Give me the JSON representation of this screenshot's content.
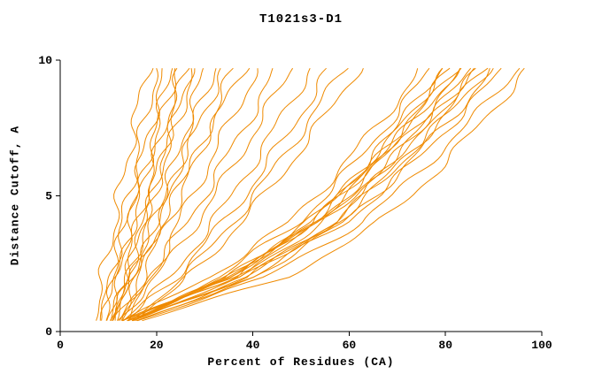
{
  "title": "T1021s3-D1",
  "colors": {
    "curve": "#ef8a00",
    "axis": "#000000",
    "background": "#ffffff",
    "text": "#000000"
  },
  "chart_data": {
    "type": "line",
    "title": "T1021s3-D1",
    "xlabel": "Percent of Residues (CA)",
    "ylabel": "Distance Cutoff, A",
    "xlim": [
      0,
      100
    ],
    "ylim": [
      0,
      10
    ],
    "xticks": [
      0,
      20,
      40,
      60,
      80,
      100
    ],
    "yticks": [
      0,
      5,
      10
    ],
    "grid": false,
    "legend": "none",
    "series": [
      {
        "points": [
          [
            7.3,
            0.4
          ],
          [
            8.9,
            2
          ],
          [
            11.2,
            4
          ],
          [
            12.3,
            5
          ],
          [
            13.5,
            6
          ],
          [
            15.9,
            8
          ],
          [
            18,
            9.7
          ]
        ]
      },
      {
        "points": [
          [
            8.5,
            0.4
          ],
          [
            10.5,
            2
          ],
          [
            13,
            4
          ],
          [
            14.2,
            5
          ],
          [
            15.4,
            6
          ],
          [
            17.9,
            8
          ],
          [
            20,
            9.7
          ]
        ]
      },
      {
        "points": [
          [
            8.5,
            0.4
          ],
          [
            10.7,
            2
          ],
          [
            13.5,
            4
          ],
          [
            15,
            5
          ],
          [
            16.5,
            6
          ],
          [
            19.4,
            8
          ],
          [
            22,
            9.7
          ]
        ]
      },
      {
        "points": [
          [
            9.7,
            0.4
          ],
          [
            12.1,
            2
          ],
          [
            15,
            4
          ],
          [
            16.5,
            5
          ],
          [
            17.9,
            6
          ],
          [
            20.7,
            8
          ],
          [
            23,
            9.7
          ]
        ]
      },
      {
        "points": [
          [
            9.5,
            0.4
          ],
          [
            11.6,
            2
          ],
          [
            14.7,
            4
          ],
          [
            16.2,
            5
          ],
          [
            17.8,
            6
          ],
          [
            21.1,
            8
          ],
          [
            24,
            9.7
          ]
        ]
      },
      {
        "points": [
          [
            10.6,
            0.4
          ],
          [
            13.1,
            2
          ],
          [
            16.2,
            4
          ],
          [
            17.7,
            5
          ],
          [
            19.3,
            6
          ],
          [
            22.4,
            8
          ],
          [
            25,
            9.7
          ]
        ]
      },
      {
        "points": [
          [
            10.9,
            0.4
          ],
          [
            13.9,
            2
          ],
          [
            17.2,
            4
          ],
          [
            18.8,
            5
          ],
          [
            20.4,
            6
          ],
          [
            23.5,
            8
          ],
          [
            26,
            9.7
          ]
        ]
      },
      {
        "points": [
          [
            11.7,
            0.4
          ],
          [
            14.3,
            2
          ],
          [
            17.6,
            4
          ],
          [
            19.3,
            5
          ],
          [
            20.9,
            6
          ],
          [
            24.2,
            8
          ],
          [
            27,
            9.7
          ]
        ]
      },
      {
        "points": [
          [
            11.5,
            0.4
          ],
          [
            14,
            2
          ],
          [
            17.4,
            4
          ],
          [
            19.2,
            5
          ],
          [
            21,
            6
          ],
          [
            24.8,
            8
          ],
          [
            28,
            9.7
          ]
        ]
      },
      {
        "points": [
          [
            12.9,
            0.4
          ],
          [
            16,
            2
          ],
          [
            19.8,
            4
          ],
          [
            21.6,
            5
          ],
          [
            23.4,
            6
          ],
          [
            27,
            8
          ],
          [
            30,
            9.7
          ]
        ]
      },
      {
        "points": [
          [
            12.8,
            0.4
          ],
          [
            16.1,
            2
          ],
          [
            20.3,
            4
          ],
          [
            22.3,
            5
          ],
          [
            24.4,
            6
          ],
          [
            28.5,
            8
          ],
          [
            32,
            9.7
          ]
        ]
      },
      {
        "points": [
          [
            10.8,
            0.4
          ],
          [
            14.6,
            2
          ],
          [
            19.5,
            4
          ],
          [
            22,
            5
          ],
          [
            24.5,
            6
          ],
          [
            29.6,
            8
          ],
          [
            34,
            9.7
          ]
        ]
      },
      {
        "points": [
          [
            12.4,
            0.4
          ],
          [
            17,
            2
          ],
          [
            22.3,
            4
          ],
          [
            24.8,
            5
          ],
          [
            27.2,
            6
          ],
          [
            32,
            8
          ],
          [
            36,
            9.7
          ]
        ]
      },
      {
        "points": [
          [
            10.2,
            0.4
          ],
          [
            15,
            2
          ],
          [
            21,
            4
          ],
          [
            24,
            5
          ],
          [
            26.9,
            6
          ],
          [
            32.9,
            8
          ],
          [
            38,
            9.7
          ]
        ]
      },
      {
        "points": [
          [
            14.2,
            0.4
          ],
          [
            18.8,
            2
          ],
          [
            24.6,
            4
          ],
          [
            27.4,
            5
          ],
          [
            30.3,
            6
          ],
          [
            36.1,
            8
          ],
          [
            41,
            9.7
          ]
        ]
      },
      {
        "points": [
          [
            10.9,
            0.4
          ],
          [
            18.5,
            2
          ],
          [
            26.2,
            4
          ],
          [
            29.8,
            5
          ],
          [
            33.2,
            6
          ],
          [
            39.7,
            8
          ],
          [
            45,
            9.7
          ]
        ]
      },
      {
        "points": [
          [
            12,
            0.4
          ],
          [
            20,
            2
          ],
          [
            28.2,
            4
          ],
          [
            32,
            5
          ],
          [
            35.6,
            6
          ],
          [
            42.4,
            8
          ],
          [
            48,
            9.7
          ]
        ]
      },
      {
        "points": [
          [
            13.9,
            0.4
          ],
          [
            22.9,
            2
          ],
          [
            31.6,
            4
          ],
          [
            35.6,
            5
          ],
          [
            39.3,
            6
          ],
          [
            46.4,
            8
          ],
          [
            52,
            9.7
          ]
        ]
      },
      {
        "points": [
          [
            13.2,
            0.4
          ],
          [
            23.9,
            2
          ],
          [
            33.8,
            4
          ],
          [
            38.2,
            5
          ],
          [
            42.3,
            6
          ],
          [
            49.9,
            8
          ],
          [
            56,
            9.7
          ]
        ]
      },
      {
        "points": [
          [
            15.5,
            0.4
          ],
          [
            25.7,
            2
          ],
          [
            35.7,
            4
          ],
          [
            40.2,
            5
          ],
          [
            44.5,
            6
          ],
          [
            52.5,
            8
          ],
          [
            59,
            9.7
          ]
        ]
      },
      {
        "points": [
          [
            14.7,
            0.4
          ],
          [
            26.6,
            2
          ],
          [
            37.5,
            4
          ],
          [
            42.3,
            5
          ],
          [
            46.9,
            6
          ],
          [
            55.3,
            8
          ],
          [
            62,
            9.7
          ]
        ]
      },
      {
        "points": [
          [
            13,
            0.4
          ],
          [
            31,
            2
          ],
          [
            47.4,
            4
          ],
          [
            53,
            5
          ],
          [
            58.2,
            6
          ],
          [
            67.7,
            8
          ],
          [
            75,
            9.7
          ]
        ]
      },
      {
        "points": [
          [
            14,
            0.4
          ],
          [
            33,
            2
          ],
          [
            49.4,
            4
          ],
          [
            55,
            5
          ],
          [
            60.2,
            6
          ],
          [
            69.7,
            8
          ],
          [
            77,
            9.7
          ]
        ]
      },
      {
        "points": [
          [
            14,
            0.4
          ],
          [
            35.5,
            2
          ],
          [
            52.1,
            4
          ],
          [
            57.7,
            5
          ],
          [
            62.8,
            6
          ],
          [
            72,
            8
          ],
          [
            79,
            9.7
          ]
        ]
      },
      {
        "points": [
          [
            15,
            0.4
          ],
          [
            34.7,
            2
          ],
          [
            51.6,
            4
          ],
          [
            57.4,
            5
          ],
          [
            62.7,
            6
          ],
          [
            72.5,
            8
          ],
          [
            80,
            9.7
          ]
        ]
      },
      {
        "points": [
          [
            13,
            0.4
          ],
          [
            35.7,
            2
          ],
          [
            52.9,
            4
          ],
          [
            58.7,
            5
          ],
          [
            64.1,
            6
          ],
          [
            73.7,
            8
          ],
          [
            81,
            9.7
          ]
        ]
      },
      {
        "points": [
          [
            14,
            0.4
          ],
          [
            35,
            2
          ],
          [
            52.3,
            4
          ],
          [
            58.4,
            5
          ],
          [
            64,
            6
          ],
          [
            74.1,
            8
          ],
          [
            82,
            9.7
          ]
        ]
      },
      {
        "points": [
          [
            15,
            0.4
          ],
          [
            34.5,
            2
          ],
          [
            52,
            4
          ],
          [
            58.2,
            5
          ],
          [
            64,
            6
          ],
          [
            74.6,
            8
          ],
          [
            83,
            9.7
          ]
        ]
      },
      {
        "points": [
          [
            13,
            0.4
          ],
          [
            35,
            2
          ],
          [
            53.1,
            4
          ],
          [
            59.4,
            5
          ],
          [
            65.2,
            6
          ],
          [
            75.8,
            8
          ],
          [
            84,
            9.7
          ]
        ]
      },
      {
        "points": [
          [
            16,
            0.4
          ],
          [
            39,
            2
          ],
          [
            56.5,
            4
          ],
          [
            62.4,
            5
          ],
          [
            67.8,
            6
          ],
          [
            77.6,
            8
          ],
          [
            85,
            9.7
          ]
        ]
      },
      {
        "points": [
          [
            14,
            0.4
          ],
          [
            36.5,
            2
          ],
          [
            54.7,
            4
          ],
          [
            61.1,
            5
          ],
          [
            67,
            6
          ],
          [
            77.7,
            8
          ],
          [
            86,
            9.7
          ]
        ]
      },
      {
        "points": [
          [
            15,
            0.4
          ],
          [
            36,
            2
          ],
          [
            54.2,
            4
          ],
          [
            60.8,
            5
          ],
          [
            66.9,
            6
          ],
          [
            78.2,
            8
          ],
          [
            87,
            9.7
          ]
        ]
      },
      {
        "points": [
          [
            14,
            0.4
          ],
          [
            38.7,
            2
          ],
          [
            57.2,
            4
          ],
          [
            63.6,
            5
          ],
          [
            69.5,
            6
          ],
          [
            80,
            8
          ],
          [
            88,
            9.7
          ]
        ]
      },
      {
        "points": [
          [
            15,
            0.4
          ],
          [
            38.2,
            2
          ],
          [
            56.9,
            4
          ],
          [
            63.4,
            5
          ],
          [
            69.5,
            6
          ],
          [
            80.5,
            8
          ],
          [
            89,
            9.7
          ]
        ]
      },
      {
        "points": [
          [
            15,
            0.4
          ],
          [
            40,
            2
          ],
          [
            58.8,
            4
          ],
          [
            65.3,
            5
          ],
          [
            71.2,
            6
          ],
          [
            81.9,
            8
          ],
          [
            90,
            9.7
          ]
        ]
      },
      {
        "points": [
          [
            16,
            0.4
          ],
          [
            40,
            2
          ],
          [
            59,
            4
          ],
          [
            65.8,
            5
          ],
          [
            72,
            6
          ],
          [
            83.3,
            8
          ],
          [
            92,
            9.7
          ]
        ]
      },
      {
        "points": [
          [
            16,
            0.4
          ],
          [
            42.8,
            2
          ],
          [
            62.3,
            4
          ],
          [
            69.1,
            5
          ],
          [
            75.3,
            6
          ],
          [
            86.5,
            8
          ],
          [
            95,
            9.7
          ]
        ]
      },
      {
        "points": [
          [
            17,
            0.4
          ],
          [
            47,
            2
          ],
          [
            66.2,
            4
          ],
          [
            72.8,
            5
          ],
          [
            78.6,
            6
          ],
          [
            89.1,
            8
          ],
          [
            97,
            9.7
          ]
        ]
      }
    ]
  }
}
